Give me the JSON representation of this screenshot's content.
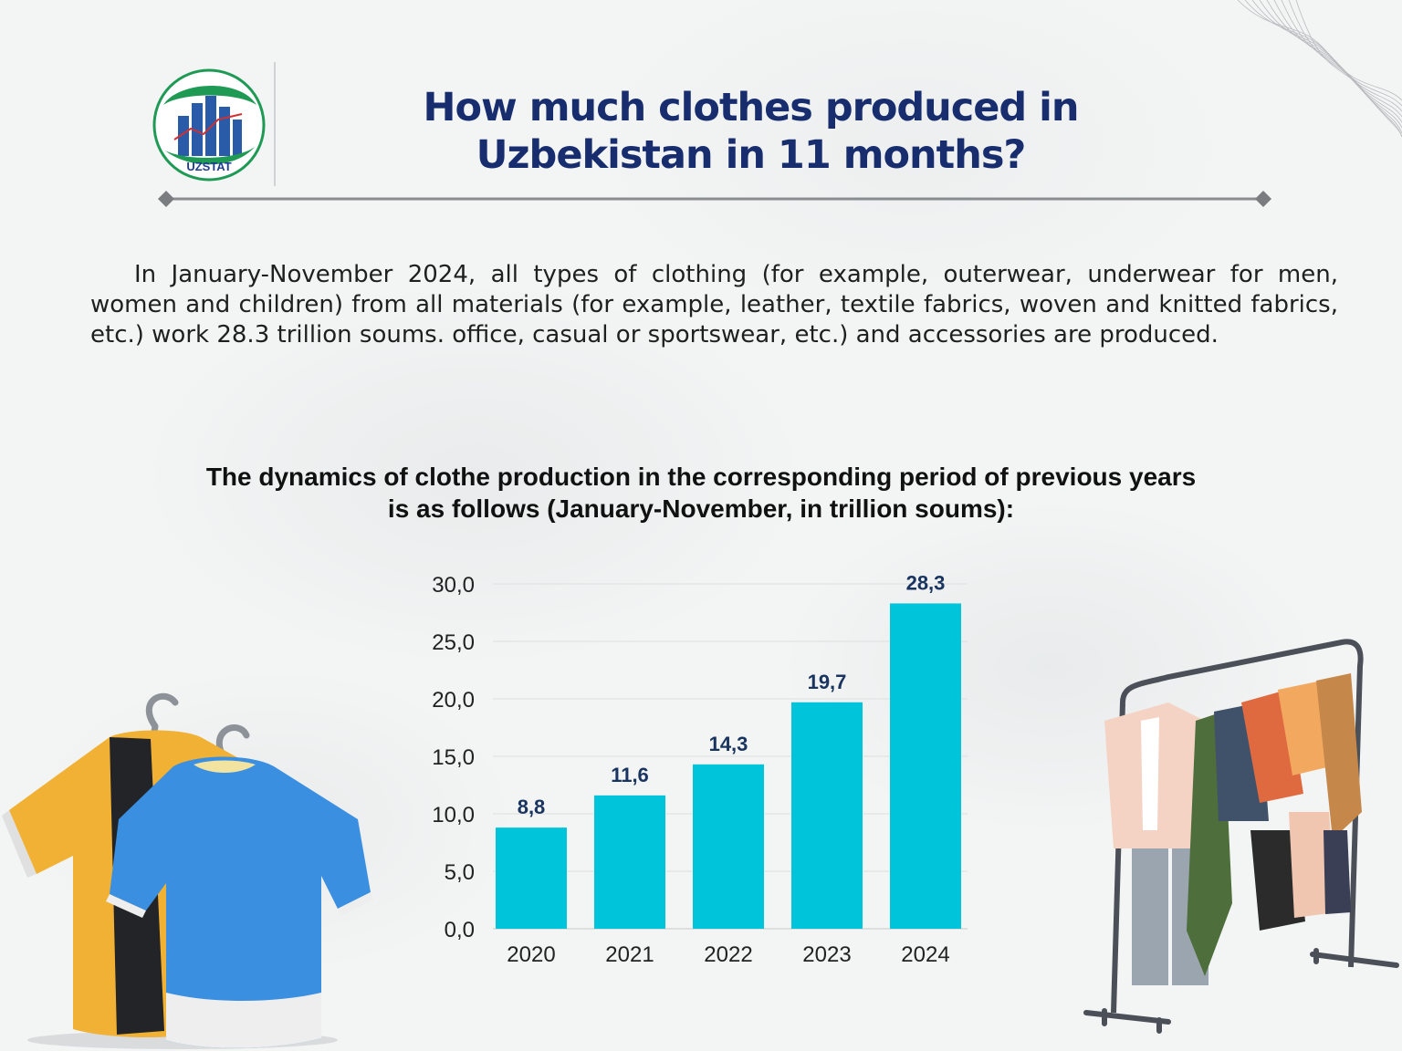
{
  "header": {
    "logo_text": "UZSTAT",
    "title_line1": "How much clothes produced in",
    "title_line2": "Uzbekistan in 11 months?"
  },
  "intro_text": "In January-November 2024, all types of clothing (for example, outerwear, underwear for men, women and children) from all materials (for example, leather, textile fabrics, woven and knitted fabrics, etc.) work 28.3 trillion soums. office, casual or sportswear, etc.) and accessories are produced.",
  "chart_data": {
    "type": "bar",
    "title": "The dynamics of clothe production in the corresponding period of previous years is as follows (January-November, in trillion soums):",
    "categories": [
      "2020",
      "2021",
      "2022",
      "2023",
      "2024"
    ],
    "values": [
      8.8,
      11.6,
      14.3,
      19.7,
      28.3
    ],
    "data_labels": [
      "8,8",
      "11,6",
      "14,3",
      "19,7",
      "28,3"
    ],
    "yticks": [
      "0,0",
      "5,0",
      "10,0",
      "15,0",
      "20,0",
      "25,0",
      "30,0"
    ],
    "ylim": [
      0,
      30
    ],
    "grid": true,
    "bar_color": "#00c5da",
    "label_color": "#1a3460"
  },
  "colors": {
    "title": "#172d6e",
    "text": "#1f1f1f",
    "accent": "#00c5da"
  },
  "icons": [
    "uzstat-logo-icon",
    "t-shirts-illustration",
    "clothing-rack-illustration"
  ]
}
